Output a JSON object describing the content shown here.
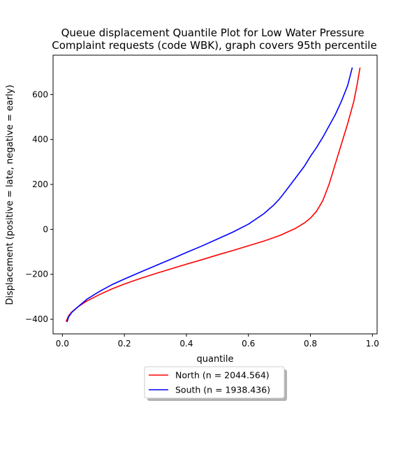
{
  "chart_data": {
    "type": "line",
    "title": "Queue displacement Quantile Plot for Low Water Pressure\nComplaint  requests (code WBK), graph covers 95th percentile",
    "xlabel": "quantile",
    "ylabel": "Displacement (positive = late, negative = early)",
    "xlim": [
      -0.03,
      1.015
    ],
    "ylim": [
      -465,
      775
    ],
    "xticks": [
      0.0,
      0.2,
      0.4,
      0.6,
      0.8,
      1.0
    ],
    "xtick_labels": [
      "0.0",
      "0.2",
      "0.4",
      "0.6",
      "0.8",
      "1.0"
    ],
    "yticks": [
      -400,
      -200,
      0,
      200,
      400,
      600
    ],
    "ytick_labels": [
      "−400",
      "−200",
      "0",
      "200",
      "400",
      "600"
    ],
    "grid": false,
    "legend_position": "below-center",
    "series": [
      {
        "name": "North (n = 2044.564)",
        "color": "#ff0000",
        "x": [
          0.012,
          0.02,
          0.03,
          0.05,
          0.08,
          0.12,
          0.16,
          0.2,
          0.25,
          0.3,
          0.35,
          0.4,
          0.45,
          0.5,
          0.55,
          0.6,
          0.65,
          0.7,
          0.75,
          0.78,
          0.8,
          0.82,
          0.84,
          0.86,
          0.88,
          0.9,
          0.92,
          0.94,
          0.95,
          0.96
        ],
        "values": [
          -410,
          -385,
          -368,
          -345,
          -318,
          -290,
          -265,
          -243,
          -219,
          -197,
          -176,
          -155,
          -135,
          -114,
          -94,
          -73,
          -52,
          -28,
          3,
          28,
          50,
          81,
          128,
          200,
          290,
          380,
          470,
          570,
          640,
          720
        ]
      },
      {
        "name": "South (n = 1938.436)",
        "color": "#0000ff",
        "x": [
          0.015,
          0.02,
          0.03,
          0.05,
          0.08,
          0.12,
          0.16,
          0.2,
          0.25,
          0.3,
          0.35,
          0.4,
          0.45,
          0.5,
          0.55,
          0.6,
          0.65,
          0.68,
          0.7,
          0.72,
          0.75,
          0.78,
          0.8,
          0.82,
          0.84,
          0.86,
          0.88,
          0.9,
          0.92,
          0.935
        ],
        "values": [
          -412,
          -390,
          -370,
          -345,
          -310,
          -276,
          -246,
          -221,
          -191,
          -162,
          -133,
          -103,
          -74,
          -43,
          -12,
          23,
          70,
          106,
          135,
          170,
          225,
          280,
          325,
          365,
          410,
          460,
          510,
          570,
          640,
          720
        ]
      }
    ]
  }
}
